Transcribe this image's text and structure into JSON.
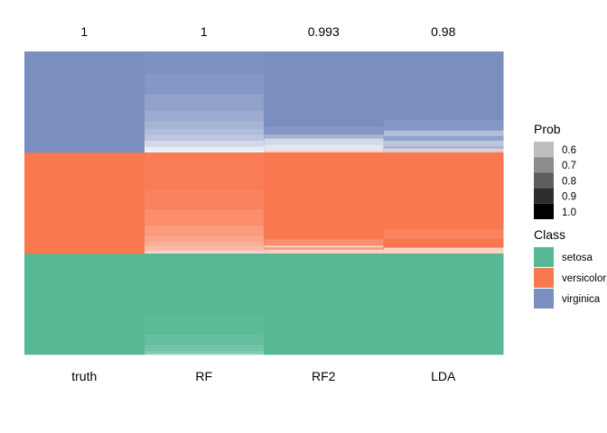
{
  "chart_data": {
    "type": "heatmap",
    "columns": [
      "truth",
      "RF",
      "RF2",
      "LDA"
    ],
    "accuracy_labels": [
      "1",
      "1",
      "0.993",
      "0.98"
    ],
    "row_order": "bottom-to-top",
    "classes": [
      "setosa",
      "versicolor",
      "virginica"
    ],
    "class_colors": {
      "setosa": "#57b894",
      "versicolor": "#f97850",
      "virginica": "#7a8ebf"
    },
    "columns_data": {
      "truth": [
        [
          "setosa",
          1.0,
          50
        ],
        [
          "versicolor",
          1.0,
          50
        ],
        [
          "virginica",
          1.0,
          50
        ]
      ],
      "RF": [
        [
          "setosa",
          0.8,
          1
        ],
        [
          "setosa",
          0.85,
          1
        ],
        [
          "setosa",
          0.9,
          3
        ],
        [
          "setosa",
          0.95,
          5
        ],
        [
          "setosa",
          0.98,
          10
        ],
        [
          "setosa",
          1.0,
          30
        ],
        [
          "versicolor",
          0.55,
          1
        ],
        [
          "versicolor",
          0.62,
          1
        ],
        [
          "versicolor",
          0.7,
          2
        ],
        [
          "versicolor",
          0.75,
          2
        ],
        [
          "versicolor",
          0.8,
          3
        ],
        [
          "versicolor",
          0.85,
          5
        ],
        [
          "versicolor",
          0.9,
          8
        ],
        [
          "versicolor",
          0.95,
          10
        ],
        [
          "versicolor",
          0.98,
          18
        ],
        [
          "virginica",
          0.45,
          1
        ],
        [
          "virginica",
          0.5,
          2
        ],
        [
          "virginica",
          0.6,
          3
        ],
        [
          "virginica",
          0.7,
          3
        ],
        [
          "virginica",
          0.75,
          3
        ],
        [
          "virginica",
          0.8,
          4
        ],
        [
          "virginica",
          0.85,
          5
        ],
        [
          "virginica",
          0.9,
          8
        ],
        [
          "virginica",
          0.95,
          10
        ],
        [
          "virginica",
          0.98,
          11
        ]
      ],
      "RF2": [
        [
          "setosa",
          1.0,
          50
        ],
        [
          "versicolor",
          0.6,
          2
        ],
        [
          "versicolor",
          0.85,
          1
        ],
        [
          "versicolor",
          0.6,
          1
        ],
        [
          "versicolor",
          0.9,
          3
        ],
        [
          "versicolor",
          1.0,
          43
        ],
        [
          "versicolor",
          0.6,
          1
        ],
        [
          "virginica",
          0.52,
          3
        ],
        [
          "virginica",
          0.6,
          3
        ],
        [
          "virginica",
          0.8,
          2
        ],
        [
          "virginica",
          0.95,
          4
        ],
        [
          "virginica",
          1.0,
          37
        ]
      ],
      "LDA": [
        [
          "setosa",
          1.0,
          50
        ],
        [
          "versicolor",
          0.6,
          3
        ],
        [
          "versicolor",
          1.0,
          4
        ],
        [
          "versicolor",
          0.95,
          5
        ],
        [
          "versicolor",
          1.0,
          38
        ],
        [
          "virginica",
          0.65,
          1
        ],
        [
          "versicolor",
          0.6,
          1
        ],
        [
          "virginica",
          0.8,
          1
        ],
        [
          "virginica",
          0.7,
          3
        ],
        [
          "virginica",
          0.9,
          2
        ],
        [
          "virginica",
          0.75,
          3
        ],
        [
          "virginica",
          0.95,
          5
        ],
        [
          "virginica",
          1.0,
          34
        ]
      ]
    },
    "legend": {
      "prob_title": "Prob",
      "prob_breaks": [
        "0.6",
        "0.7",
        "0.8",
        "0.9",
        "1.0"
      ],
      "prob_colors": [
        "#bdbdbd",
        "#8c8c8c",
        "#5e5e5e",
        "#2e2e2e",
        "#000000"
      ],
      "class_title": "Class",
      "class_labels": [
        "setosa",
        "versicolor",
        "virginica"
      ]
    }
  }
}
